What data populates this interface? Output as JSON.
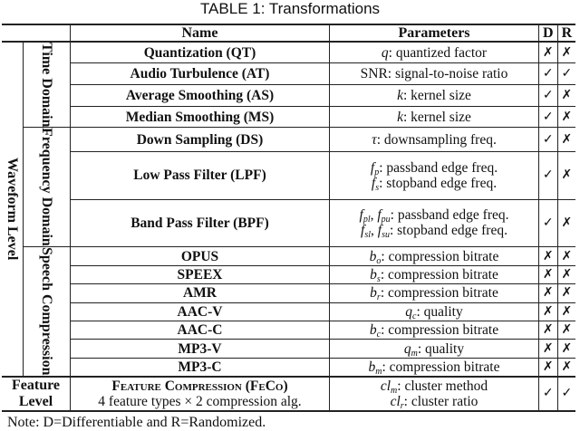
{
  "title": "TABLE 1: Transformations",
  "header": {
    "name": "Name",
    "parameters": "Parameters",
    "d": "D",
    "r": "R"
  },
  "groups": {
    "waveform": "Waveform Level",
    "time": "Time Domain",
    "freq": "Frequency Domain",
    "speech": "Speech Compression",
    "feature": "Feature Level"
  },
  "rows": [
    {
      "name": "Quantization (QT)",
      "params": [
        {
          "v": "q",
          "s": "",
          "t": ": quantized factor"
        }
      ],
      "d": "✗",
      "r": "✗"
    },
    {
      "name": "Audio Turbulence (AT)",
      "params": [
        {
          "v": "",
          "s": "",
          "t": "SNR: signal-to-noise ratio"
        }
      ],
      "d": "✓",
      "r": "✓"
    },
    {
      "name": "Average Smoothing (AS)",
      "params": [
        {
          "v": "k",
          "s": "",
          "t": ": kernel size"
        }
      ],
      "d": "✓",
      "r": "✗"
    },
    {
      "name": "Median Smoothing (MS)",
      "params": [
        {
          "v": "k",
          "s": "",
          "t": ": kernel size"
        }
      ],
      "d": "✓",
      "r": "✗"
    },
    {
      "name": "Down Sampling (DS)",
      "params": [
        {
          "v": "τ",
          "s": "",
          "t": ": downsampling freq."
        }
      ],
      "d": "✓",
      "r": "✗"
    },
    {
      "name": "Low Pass Filter (LPF)",
      "params": [
        {
          "v": "f",
          "s": "p",
          "t": ": passband edge freq."
        },
        {
          "v": "f",
          "s": "s",
          "t": ": stopband edge freq."
        }
      ],
      "d": "✓",
      "r": "✗"
    },
    {
      "name": "Band Pass Filter (BPF)",
      "params": [
        {
          "v": "f",
          "s": "pl",
          "v2": "f",
          "s2": "pu",
          "t": ": passband edge freq."
        },
        {
          "v": "f",
          "s": "sl",
          "v2": "f",
          "s2": "su",
          "t": ": stopband edge freq."
        }
      ],
      "d": "✓",
      "r": "✗"
    },
    {
      "name": "OPUS",
      "params": [
        {
          "v": "b",
          "s": "o",
          "t": ": compression bitrate"
        }
      ],
      "d": "✗",
      "r": "✗"
    },
    {
      "name": "SPEEX",
      "params": [
        {
          "v": "b",
          "s": "s",
          "t": ": compression bitrate"
        }
      ],
      "d": "✗",
      "r": "✗"
    },
    {
      "name": "AMR",
      "params": [
        {
          "v": "b",
          "s": "r",
          "t": ": compression bitrate"
        }
      ],
      "d": "✗",
      "r": "✗"
    },
    {
      "name": "AAC-V",
      "params": [
        {
          "v": "q",
          "s": "c",
          "t": ": quality"
        }
      ],
      "d": "✗",
      "r": "✗"
    },
    {
      "name": "AAC-C",
      "params": [
        {
          "v": "b",
          "s": "c",
          "t": ": compression bitrate"
        }
      ],
      "d": "✗",
      "r": "✗"
    },
    {
      "name": "MP3-V",
      "params": [
        {
          "v": "q",
          "s": "m",
          "t": ": quality"
        }
      ],
      "d": "✗",
      "r": "✗"
    },
    {
      "name": "MP3-C",
      "params": [
        {
          "v": "b",
          "s": "m",
          "t": ": compression bitrate"
        }
      ],
      "d": "✗",
      "r": "✗"
    }
  ],
  "feature": {
    "name": "Feature Compression (FeCo)",
    "sub": "4 feature types × 2 compression alg.",
    "params": [
      {
        "v": "cl",
        "s": "m",
        "t": ": cluster method"
      },
      {
        "v": "cl",
        "s": "r",
        "t": ": cluster ratio"
      }
    ],
    "d": "✓",
    "r": "✓"
  },
  "note": "Note: D=Differentiable and R=Randomized."
}
